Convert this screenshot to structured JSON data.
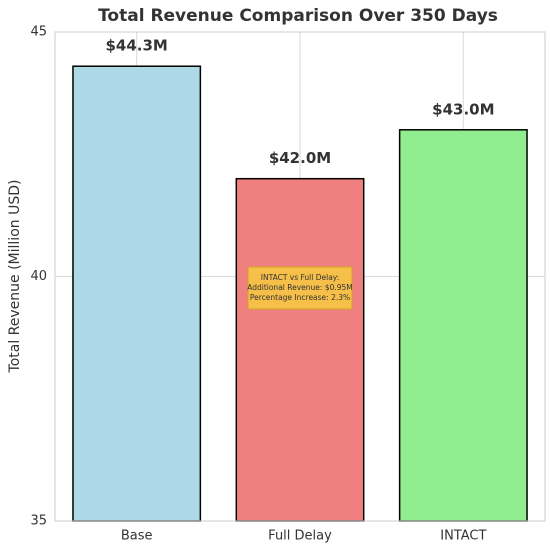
{
  "chart_data": {
    "type": "bar",
    "title": "Total Revenue Comparison Over 350 Days",
    "ylabel": "Total Revenue (Million USD)",
    "categories": [
      "Base",
      "Full Delay",
      "INTACT"
    ],
    "values": [
      44.3,
      42.0,
      43.0
    ],
    "value_labels": [
      "$44.3M",
      "$42.0M",
      "$43.0M"
    ],
    "colors": [
      "#add8e6",
      "#f08080",
      "#90ee90"
    ],
    "ylim": [
      35,
      45
    ],
    "yticks": [
      35,
      40,
      45
    ],
    "grid": true,
    "annotation": [
      "INTACT vs Full Delay:",
      "Additional Revenue: $0.95M",
      "Percentage Increase: 2.3%"
    ]
  }
}
